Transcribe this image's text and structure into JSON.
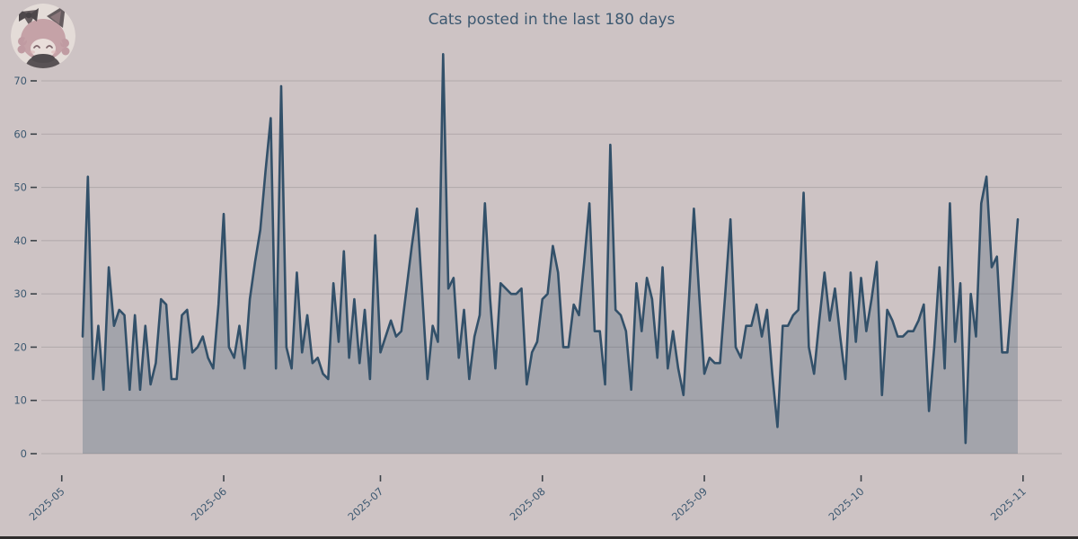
{
  "header": {
    "title": "Cats posted in the last 180 days"
  },
  "avatar": {
    "name": "cat-girl-profile-avatar"
  },
  "chart_data": {
    "type": "area",
    "title": "Cats posted in the last 180 days",
    "x_start_date": "2025-05-05",
    "x_end_date": "2025-10-31",
    "days": 180,
    "values": [
      22,
      52,
      14,
      24,
      12,
      35,
      24,
      27,
      26,
      12,
      26,
      12,
      24,
      13,
      17,
      29,
      28,
      14,
      14,
      26,
      27,
      19,
      20,
      22,
      18,
      16,
      28,
      45,
      20,
      18,
      24,
      16,
      29,
      36,
      42,
      53,
      63,
      16,
      69,
      20,
      16,
      34,
      19,
      26,
      17,
      18,
      15,
      14,
      32,
      21,
      38,
      18,
      29,
      17,
      27,
      14,
      41,
      19,
      22,
      25,
      22,
      23,
      31,
      39,
      46,
      30,
      14,
      24,
      21,
      75,
      31,
      33,
      18,
      27,
      14,
      22,
      26,
      47,
      29,
      16,
      32,
      31,
      30,
      30,
      31,
      13,
      19,
      21,
      29,
      30,
      39,
      34,
      20,
      20,
      28,
      26,
      36,
      47,
      23,
      23,
      13,
      58,
      27,
      26,
      23,
      12,
      32,
      23,
      33,
      29,
      18,
      35,
      16,
      23,
      16,
      11,
      28,
      46,
      30,
      15,
      18,
      17,
      17,
      30,
      44,
      20,
      18,
      24,
      24,
      28,
      22,
      27,
      15,
      5,
      24,
      24,
      26,
      27,
      49,
      20,
      15,
      25,
      34,
      25,
      31,
      22,
      14,
      34,
      21,
      33,
      23,
      29,
      36,
      11,
      27,
      25,
      22,
      22,
      23,
      23,
      25,
      28,
      8,
      20,
      35,
      16,
      47,
      21,
      32,
      2,
      30,
      22,
      47,
      52,
      35,
      37,
      19,
      19,
      31,
      44
    ],
    "ylim": [
      0,
      75
    ],
    "y_ticks": [
      0,
      10,
      20,
      30,
      40,
      50,
      60,
      70
    ],
    "x_ticks": [
      {
        "label": "2025-05",
        "day": -4
      },
      {
        "label": "2025-06",
        "day": 27
      },
      {
        "label": "2025-07",
        "day": 57
      },
      {
        "label": "2025-08",
        "day": 88
      },
      {
        "label": "2025-09",
        "day": 119
      },
      {
        "label": "2025-10",
        "day": 149
      },
      {
        "label": "2025-11",
        "day": 180
      }
    ],
    "grid": "horizontal",
    "legend": "none",
    "colors": {
      "background": "#cdc3c4",
      "line": "#325069",
      "fill_rgba": "rgba(50,80,105,0.27)",
      "grid": "#b1a8aa",
      "text": "#3d5971",
      "tick_mark": "#3c4248"
    }
  }
}
